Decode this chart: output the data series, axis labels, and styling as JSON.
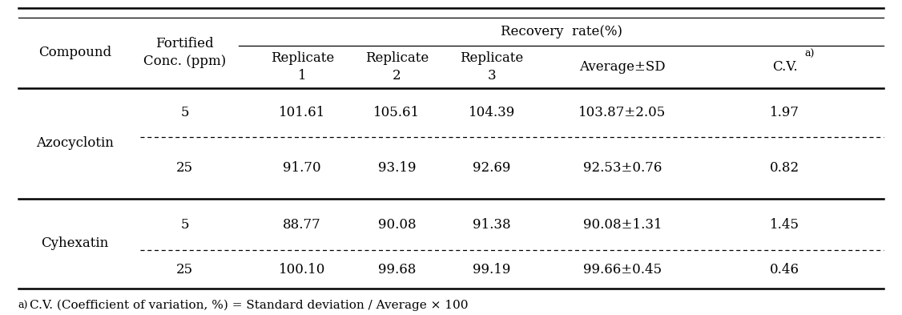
{
  "col_headers_top": [
    "Compound",
    "Fortified\nConc. (ppm)",
    "Recovery  rate(%)"
  ],
  "col_headers_sub": [
    "Replicate\n1",
    "Replicate\n2",
    "Replicate\n3",
    "Average±SD",
    "C.V."
  ],
  "cv_superscript": "a)",
  "rows": [
    [
      "Azocyclotin",
      "5",
      "101.61",
      "105.61",
      "104.39",
      "103.87±2.05",
      "1.97"
    ],
    [
      "Azocyclotin",
      "25",
      "91.70",
      "93.19",
      "92.69",
      "92.53±0.76",
      "0.82"
    ],
    [
      "Cyhexatin",
      "5",
      "88.77",
      "90.08",
      "91.38",
      "90.08±1.31",
      "1.45"
    ],
    [
      "Cyhexatin",
      "25",
      "100.10",
      "99.68",
      "99.19",
      "99.66±0.45",
      "0.46"
    ]
  ],
  "footnote_super": "a)",
  "footnote_main": "C.V. (Coefficient of variation, %) = Standard deviation / Average × 100",
  "bg_color": "#ffffff",
  "text_color": "#000000",
  "line_color": "#000000",
  "font_size": 12,
  "fig_width": 11.26,
  "fig_height": 3.93,
  "dpi": 100
}
